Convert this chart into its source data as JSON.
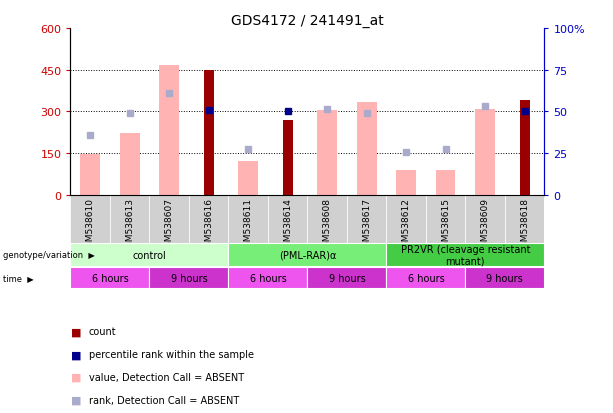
{
  "title": "GDS4172 / 241491_at",
  "samples": [
    "GSM538610",
    "GSM538613",
    "GSM538607",
    "GSM538616",
    "GSM538611",
    "GSM538614",
    "GSM538608",
    "GSM538617",
    "GSM538612",
    "GSM538615",
    "GSM538609",
    "GSM538618"
  ],
  "count": [
    null,
    null,
    null,
    450,
    null,
    270,
    null,
    null,
    null,
    null,
    null,
    340
  ],
  "percentile_rank": [
    null,
    null,
    null,
    305,
    null,
    300,
    null,
    null,
    null,
    null,
    null,
    300
  ],
  "value_absent": [
    147,
    220,
    465,
    null,
    120,
    null,
    305,
    335,
    90,
    88,
    308,
    null
  ],
  "rank_absent": [
    215,
    293,
    365,
    null,
    165,
    null,
    307,
    293,
    155,
    163,
    318,
    null
  ],
  "ylim_left": [
    0,
    600
  ],
  "ylim_right": [
    0,
    100
  ],
  "yticks_left": [
    0,
    150,
    300,
    450,
    600
  ],
  "yticks_right": [
    0,
    25,
    50,
    75,
    100
  ],
  "yticklabels_right": [
    "0",
    "25",
    "50",
    "75",
    "100%"
  ],
  "left_axis_color": "#cc0000",
  "right_axis_color": "#0000cc",
  "bar_count_color": "#9b0000",
  "bar_absent_value_color": "#ffb3b3",
  "dot_percentile_color": "#00008b",
  "dot_absent_rank_color": "#aaaacc",
  "genotype_groups": [
    {
      "label": "control",
      "start": 0,
      "end": 4,
      "color": "#ccffcc"
    },
    {
      "label": "(PML-RAR)α",
      "start": 4,
      "end": 8,
      "color": "#77ee77"
    },
    {
      "label": "PR2VR (cleavage resistant\nmutant)",
      "start": 8,
      "end": 12,
      "color": "#44cc44"
    }
  ],
  "time_groups": [
    {
      "label": "6 hours",
      "start": 0,
      "end": 2,
      "color": "#ee55ee"
    },
    {
      "label": "9 hours",
      "start": 2,
      "end": 4,
      "color": "#cc33cc"
    },
    {
      "label": "6 hours",
      "start": 4,
      "end": 6,
      "color": "#ee55ee"
    },
    {
      "label": "9 hours",
      "start": 6,
      "end": 8,
      "color": "#cc33cc"
    },
    {
      "label": "6 hours",
      "start": 8,
      "end": 10,
      "color": "#ee55ee"
    },
    {
      "label": "9 hours",
      "start": 10,
      "end": 12,
      "color": "#cc33cc"
    }
  ],
  "legend_items": [
    {
      "label": "count",
      "color": "#9b0000"
    },
    {
      "label": "percentile rank within the sample",
      "color": "#00008b"
    },
    {
      "label": "value, Detection Call = ABSENT",
      "color": "#ffb3b3"
    },
    {
      "label": "rank, Detection Call = ABSENT",
      "color": "#aaaacc"
    }
  ]
}
